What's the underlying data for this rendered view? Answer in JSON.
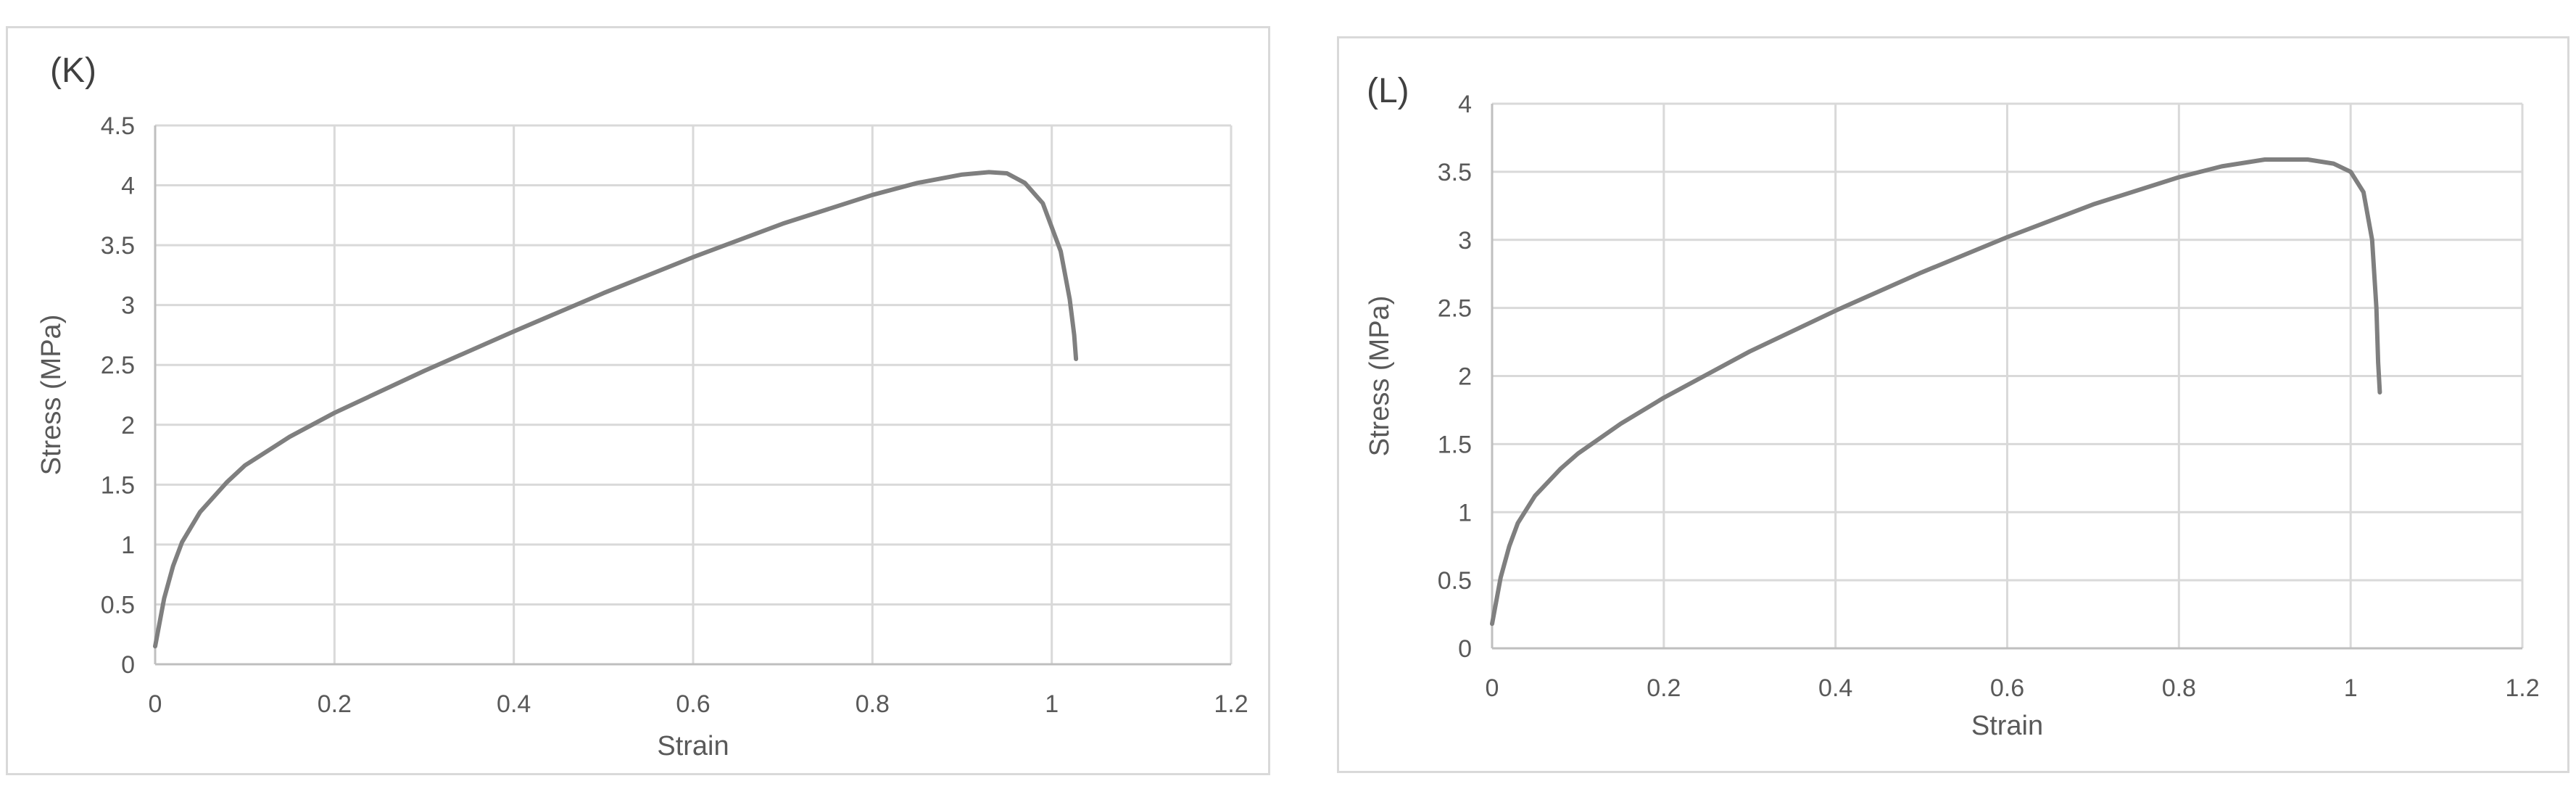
{
  "colors": {
    "series": "#7f7f7f",
    "grid": "#d9d9d9",
    "text": "#595959",
    "panel_border": "#d9d9d9"
  },
  "chart_data": [
    {
      "type": "line",
      "panel_label": "(K)",
      "xlabel": "Strain",
      "ylabel": "Stress (MPa)",
      "xlim": [
        0,
        1.2
      ],
      "ylim": [
        0,
        4.5
      ],
      "x_ticks": [
        "0",
        "0.2",
        "0.4",
        "0.6",
        "0.8",
        "1",
        "1.2"
      ],
      "y_ticks": [
        "0",
        "0.5",
        "1",
        "1.5",
        "2",
        "2.5",
        "3",
        "3.5",
        "4",
        "4.5"
      ],
      "grid": true,
      "legend": "none",
      "series": [
        {
          "x": [
            0,
            0.01,
            0.02,
            0.03,
            0.05,
            0.08,
            0.1,
            0.15,
            0.2,
            0.3,
            0.4,
            0.5,
            0.6,
            0.7,
            0.8,
            0.85,
            0.9,
            0.93,
            0.95,
            0.97,
            0.99,
            1.01,
            1.02,
            1.025,
            1.027
          ],
          "y": [
            0.15,
            0.55,
            0.82,
            1.02,
            1.27,
            1.52,
            1.66,
            1.9,
            2.1,
            2.45,
            2.78,
            3.1,
            3.4,
            3.68,
            3.92,
            4.02,
            4.09,
            4.11,
            4.1,
            4.02,
            3.85,
            3.45,
            3.05,
            2.75,
            2.55
          ]
        }
      ]
    },
    {
      "type": "line",
      "panel_label": "(L)",
      "xlabel": "Strain",
      "ylabel": "Stress (MPa)",
      "xlim": [
        0,
        1.2
      ],
      "ylim": [
        0,
        4
      ],
      "x_ticks": [
        "0",
        "0.2",
        "0.4",
        "0.6",
        "0.8",
        "1",
        "1.2"
      ],
      "y_ticks": [
        "0",
        "0.5",
        "1",
        "1.5",
        "2",
        "2.5",
        "3",
        "3.5",
        "4"
      ],
      "grid": true,
      "legend": "none",
      "series": [
        {
          "x": [
            0,
            0.01,
            0.02,
            0.03,
            0.05,
            0.08,
            0.1,
            0.15,
            0.2,
            0.3,
            0.4,
            0.5,
            0.6,
            0.7,
            0.8,
            0.85,
            0.9,
            0.95,
            0.98,
            1.0,
            1.015,
            1.025,
            1.03,
            1.032,
            1.034
          ],
          "y": [
            0.18,
            0.52,
            0.75,
            0.92,
            1.12,
            1.32,
            1.43,
            1.65,
            1.84,
            2.18,
            2.48,
            2.76,
            3.02,
            3.26,
            3.46,
            3.54,
            3.59,
            3.59,
            3.56,
            3.5,
            3.35,
            3.0,
            2.5,
            2.1,
            1.88
          ]
        }
      ]
    }
  ]
}
